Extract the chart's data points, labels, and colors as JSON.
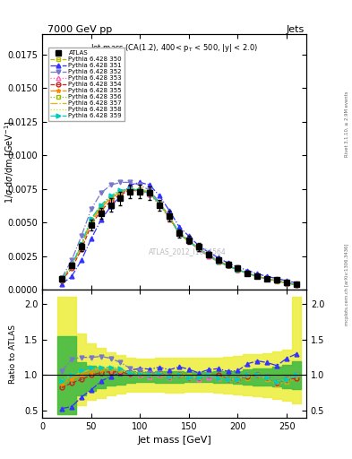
{
  "title_left": "7000 GeV pp",
  "title_right": "Jets",
  "panel_title": "Jet mass (CA(1.2), 400< p_{T} < 500, |y| < 2.0)",
  "xlabel": "Jet mass [GeV]",
  "ylabel": "1/#sigma d#sigma/dm [GeV^{-1}]",
  "ylabel_ratio": "Ratio to ATLAS",
  "watermark": "ATLAS_2012_I1094564",
  "right_label_top": "Rivet 3.1.10, ≥ 2.9M events",
  "right_label_bottom": "mcplots.cern.ch [arXiv:1306.3436]",
  "xlim": [
    0,
    270
  ],
  "ylim": [
    0,
    0.019
  ],
  "ratio_ylim": [
    0.4,
    2.2
  ],
  "ratio_yticks": [
    0.5,
    1.0,
    1.5,
    2.0
  ],
  "x_data": [
    20,
    30,
    40,
    50,
    60,
    70,
    80,
    90,
    100,
    110,
    120,
    130,
    140,
    150,
    160,
    170,
    180,
    190,
    200,
    210,
    220,
    230,
    240,
    250,
    260
  ],
  "x_edges": [
    15,
    25,
    35,
    45,
    55,
    65,
    75,
    85,
    95,
    105,
    115,
    125,
    135,
    145,
    155,
    165,
    175,
    185,
    195,
    205,
    215,
    225,
    235,
    245,
    255,
    265
  ],
  "atlas_y": [
    0.00085,
    0.0018,
    0.0032,
    0.0048,
    0.0057,
    0.0063,
    0.0068,
    0.0073,
    0.0073,
    0.0072,
    0.0063,
    0.0055,
    0.0042,
    0.0037,
    0.0032,
    0.0026,
    0.0022,
    0.0019,
    0.0016,
    0.00125,
    0.001,
    0.00085,
    0.00075,
    0.00055,
    0.0004
  ],
  "atlas_err": [
    0.00015,
    0.0002,
    0.0003,
    0.0004,
    0.0004,
    0.0005,
    0.0005,
    0.0005,
    0.0005,
    0.0005,
    0.0004,
    0.0004,
    0.0003,
    0.0003,
    0.0003,
    0.0002,
    0.0002,
    0.0002,
    0.0002,
    0.00015,
    0.0001,
    0.0001,
    0.0001,
    0.0001,
    8e-05
  ],
  "series": [
    {
      "label": "Pythia 6.428 350",
      "color": "#bbbb00",
      "linestyle": "--",
      "marker": "s",
      "markerfacecolor": "none",
      "y": [
        0.00075,
        0.0018,
        0.0033,
        0.0052,
        0.0062,
        0.0068,
        0.0073,
        0.0075,
        0.0075,
        0.0073,
        0.0065,
        0.0055,
        0.0043,
        0.0037,
        0.0031,
        0.0026,
        0.0021,
        0.0018,
        0.0015,
        0.0012,
        0.001,
        0.0008,
        0.00065,
        0.0005,
        0.00038
      ]
    },
    {
      "label": "Pythia 6.428 351",
      "color": "#3333ff",
      "linestyle": "-.",
      "marker": "^",
      "markerfacecolor": "#3333ff",
      "y": [
        0.00045,
        0.001,
        0.0022,
        0.0038,
        0.0052,
        0.0062,
        0.007,
        0.0078,
        0.008,
        0.0078,
        0.007,
        0.0059,
        0.0047,
        0.004,
        0.0033,
        0.0028,
        0.0024,
        0.002,
        0.0017,
        0.00145,
        0.0012,
        0.001,
        0.00085,
        0.00068,
        0.00052
      ]
    },
    {
      "label": "Pythia 6.428 352",
      "color": "#7777cc",
      "linestyle": "-.",
      "marker": "v",
      "markerfacecolor": "#7777cc",
      "y": [
        0.0009,
        0.0022,
        0.004,
        0.006,
        0.0072,
        0.0078,
        0.008,
        0.008,
        0.0078,
        0.0074,
        0.0065,
        0.0054,
        0.0042,
        0.0036,
        0.003,
        0.0025,
        0.0021,
        0.0018,
        0.0015,
        0.00125,
        0.001,
        0.00083,
        0.00068,
        0.00052,
        0.0004
      ]
    },
    {
      "label": "Pythia 6.428 353",
      "color": "#ff66bb",
      "linestyle": ":",
      "marker": "^",
      "markerfacecolor": "none",
      "y": [
        0.00078,
        0.0018,
        0.0033,
        0.0051,
        0.0062,
        0.0068,
        0.0072,
        0.0074,
        0.0073,
        0.0071,
        0.0063,
        0.0053,
        0.0042,
        0.0036,
        0.003,
        0.0025,
        0.0021,
        0.0018,
        0.0015,
        0.00125,
        0.001,
        0.00082,
        0.00067,
        0.00052,
        0.0004
      ]
    },
    {
      "label": "Pythia 6.428 354",
      "color": "#cc2222",
      "linestyle": "--",
      "marker": "o",
      "markerfacecolor": "none",
      "y": [
        0.0007,
        0.0016,
        0.003,
        0.0048,
        0.0059,
        0.0066,
        0.0071,
        0.0074,
        0.0074,
        0.0072,
        0.0064,
        0.0054,
        0.0042,
        0.0036,
        0.0031,
        0.0026,
        0.0022,
        0.0018,
        0.0015,
        0.00123,
        0.001,
        0.00082,
        0.00067,
        0.00052,
        0.00038
      ]
    },
    {
      "label": "Pythia 6.428 355",
      "color": "#ff8800",
      "linestyle": "-.",
      "marker": "*",
      "markerfacecolor": "#ff8800",
      "y": [
        0.00075,
        0.0017,
        0.0032,
        0.005,
        0.0061,
        0.0068,
        0.0073,
        0.0075,
        0.0074,
        0.0072,
        0.0064,
        0.0054,
        0.0042,
        0.0036,
        0.0031,
        0.0026,
        0.0021,
        0.0018,
        0.0015,
        0.00125,
        0.001,
        0.00082,
        0.00068,
        0.00052,
        0.0004
      ]
    },
    {
      "label": "Pythia 6.428 356",
      "color": "#99bb00",
      "linestyle": ":",
      "marker": "s",
      "markerfacecolor": "none",
      "y": [
        0.00078,
        0.0018,
        0.0033,
        0.0052,
        0.0062,
        0.0069,
        0.0073,
        0.0075,
        0.0074,
        0.0072,
        0.0064,
        0.0054,
        0.0042,
        0.0036,
        0.0031,
        0.0026,
        0.0021,
        0.0018,
        0.0015,
        0.00125,
        0.001,
        0.00082,
        0.00068,
        0.00052,
        0.0004
      ]
    },
    {
      "label": "Pythia 6.428 357",
      "color": "#ddbb00",
      "linestyle": "-.",
      "marker": null,
      "markerfacecolor": "none",
      "y": [
        0.00078,
        0.0018,
        0.0033,
        0.0052,
        0.0062,
        0.0069,
        0.0073,
        0.0075,
        0.0074,
        0.0072,
        0.0064,
        0.0054,
        0.0042,
        0.0036,
        0.0031,
        0.0026,
        0.0021,
        0.0018,
        0.0015,
        0.00125,
        0.001,
        0.00082,
        0.00068,
        0.00052,
        0.0004
      ]
    },
    {
      "label": "Pythia 6.428 358",
      "color": "#ccee00",
      "linestyle": ":",
      "marker": null,
      "markerfacecolor": "none",
      "y": [
        0.00079,
        0.0018,
        0.0034,
        0.0053,
        0.0063,
        0.007,
        0.0074,
        0.0075,
        0.0075,
        0.0072,
        0.0064,
        0.0054,
        0.0042,
        0.0036,
        0.0031,
        0.0026,
        0.0021,
        0.0018,
        0.0015,
        0.00125,
        0.001,
        0.00082,
        0.00068,
        0.00052,
        0.0004
      ]
    },
    {
      "label": "Pythia 6.428 359",
      "color": "#00ccbb",
      "linestyle": "-.",
      "marker": ">",
      "markerfacecolor": "#00ccbb",
      "y": [
        0.00078,
        0.0018,
        0.0034,
        0.0053,
        0.0063,
        0.007,
        0.0074,
        0.0075,
        0.0074,
        0.0072,
        0.0064,
        0.0054,
        0.0042,
        0.0036,
        0.0031,
        0.0026,
        0.0021,
        0.0018,
        0.0015,
        0.00125,
        0.001,
        0.00082,
        0.00068,
        0.00052,
        0.0004
      ]
    }
  ],
  "yellow_band_low": [
    0.45,
    0.45,
    0.58,
    0.65,
    0.68,
    0.71,
    0.74,
    0.76,
    0.77,
    0.77,
    0.76,
    0.75,
    0.75,
    0.76,
    0.76,
    0.76,
    0.75,
    0.74,
    0.73,
    0.71,
    0.7,
    0.69,
    0.67,
    0.64,
    0.6
  ],
  "yellow_band_high": [
    2.1,
    2.1,
    1.58,
    1.45,
    1.38,
    1.32,
    1.28,
    1.25,
    1.23,
    1.23,
    1.24,
    1.25,
    1.25,
    1.24,
    1.24,
    1.24,
    1.25,
    1.26,
    1.27,
    1.29,
    1.3,
    1.31,
    1.33,
    1.36,
    2.1
  ],
  "green_band_low": [
    0.45,
    0.45,
    0.72,
    0.78,
    0.82,
    0.85,
    0.87,
    0.89,
    0.9,
    0.9,
    0.89,
    0.89,
    0.89,
    0.9,
    0.9,
    0.9,
    0.89,
    0.89,
    0.88,
    0.87,
    0.86,
    0.85,
    0.84,
    0.82,
    0.8
  ],
  "green_band_high": [
    1.55,
    1.55,
    1.18,
    1.13,
    1.1,
    1.08,
    1.06,
    1.05,
    1.04,
    1.04,
    1.05,
    1.05,
    1.05,
    1.04,
    1.04,
    1.04,
    1.05,
    1.05,
    1.06,
    1.08,
    1.09,
    1.1,
    1.12,
    1.15,
    1.2
  ]
}
